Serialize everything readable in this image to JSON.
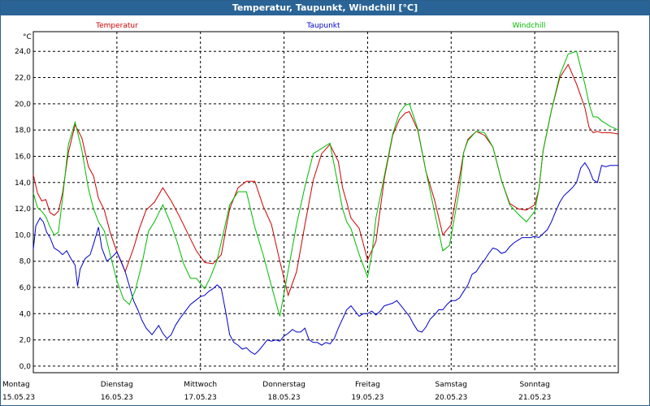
{
  "window": {
    "title": "Temperatur, Taupunkt, Windchill [°C]"
  },
  "chart_data": {
    "type": "line",
    "title": "Temperatur, Taupunkt, Windchill [°C]",
    "ylabel": "°C",
    "ylim": [
      -0.5,
      25.5
    ],
    "yticks": [
      0,
      2,
      4,
      6,
      8,
      10,
      12,
      14,
      16,
      18,
      20,
      22,
      24
    ],
    "ytick_labels": [
      "0,0",
      "2,0",
      "4,0",
      "6,0",
      "8,0",
      "10,0",
      "12,0",
      "14,0",
      "16,0",
      "18,0",
      "20,0",
      "22,0",
      "24,0"
    ],
    "xlim": [
      0,
      7
    ],
    "days": [
      {
        "name": "Montag",
        "date": "15.05.23"
      },
      {
        "name": "Dienstag",
        "date": "16.05.23"
      },
      {
        "name": "Mittwoch",
        "date": "17.05.23"
      },
      {
        "name": "Donnerstag",
        "date": "18.05.23"
      },
      {
        "name": "Freitag",
        "date": "19.05.23"
      },
      {
        "name": "Samstag",
        "date": "20.05.23"
      },
      {
        "name": "Sonntag",
        "date": "21.05.23"
      }
    ],
    "grid": true,
    "series": [
      {
        "name": "Temperatur",
        "color": "#cc0000",
        "x": [
          0,
          0.05,
          0.1,
          0.15,
          0.2,
          0.25,
          0.3,
          0.35,
          0.42,
          0.5,
          0.58,
          0.66,
          0.72,
          0.78,
          0.85,
          0.92,
          1.0,
          1.1,
          1.2,
          1.27,
          1.35,
          1.45,
          1.55,
          1.65,
          1.75,
          1.85,
          1.95,
          2.05,
          2.15,
          2.25,
          2.3,
          2.35,
          2.45,
          2.55,
          2.65,
          2.75,
          2.85,
          2.95,
          3.05,
          3.15,
          3.25,
          3.35,
          3.45,
          3.55,
          3.65,
          3.7,
          3.75,
          3.8,
          3.9,
          4.0,
          4.1,
          4.2,
          4.3,
          4.38,
          4.45,
          4.5,
          4.6,
          4.7,
          4.8,
          4.9,
          5.0,
          5.1,
          5.15,
          5.2,
          5.3,
          5.4,
          5.5,
          5.6,
          5.7,
          5.8,
          5.9,
          6.0,
          6.05,
          6.1,
          6.2,
          6.3,
          6.4,
          6.5,
          6.6,
          6.65,
          6.7,
          6.75,
          6.8,
          6.9,
          7.0
        ],
        "values": [
          14.6,
          13.2,
          12.6,
          12.7,
          11.7,
          11.5,
          11.8,
          13.2,
          16.3,
          18.4,
          17.4,
          15.2,
          14.5,
          12.8,
          11.9,
          10.2,
          8.7,
          7.2,
          9.0,
          10.5,
          11.9,
          12.5,
          13.6,
          12.6,
          11.4,
          10.1,
          8.8,
          7.9,
          7.8,
          8.5,
          10.3,
          12.0,
          13.6,
          14.1,
          14.1,
          12.2,
          10.8,
          8.0,
          5.4,
          7.2,
          10.8,
          14.2,
          16.2,
          16.9,
          15.6,
          13.6,
          12.5,
          11.3,
          10.5,
          8.1,
          9.5,
          14.3,
          17.6,
          18.8,
          19.3,
          19.4,
          18.0,
          14.8,
          12.7,
          10.0,
          10.8,
          14.4,
          16.3,
          17.3,
          17.9,
          17.6,
          16.7,
          14.2,
          12.4,
          12.0,
          11.9,
          12.3,
          13.5,
          16.4,
          19.5,
          22.0,
          23.0,
          21.5,
          19.7,
          18.2,
          17.8,
          17.9,
          17.8,
          17.8,
          17.7
        ],
        "x_note": "x in days from 15.05.23 00:00"
      },
      {
        "name": "Taupunkt",
        "color": "#0000cc",
        "x": [
          0,
          0.03,
          0.08,
          0.12,
          0.16,
          0.2,
          0.25,
          0.3,
          0.35,
          0.4,
          0.45,
          0.5,
          0.53,
          0.56,
          0.62,
          0.68,
          0.72,
          0.78,
          0.82,
          0.88,
          0.94,
          1.0,
          1.05,
          1.1,
          1.15,
          1.2,
          1.25,
          1.3,
          1.35,
          1.42,
          1.5,
          1.55,
          1.6,
          1.65,
          1.7,
          1.75,
          1.82,
          1.88,
          1.94,
          2.0,
          2.05,
          2.1,
          2.15,
          2.2,
          2.25,
          2.3,
          2.35,
          2.4,
          2.45,
          2.5,
          2.55,
          2.6,
          2.65,
          2.7,
          2.75,
          2.8,
          2.85,
          2.9,
          2.95,
          3.0,
          3.05,
          3.1,
          3.15,
          3.2,
          3.25,
          3.3,
          3.35,
          3.4,
          3.45,
          3.5,
          3.55,
          3.6,
          3.65,
          3.7,
          3.75,
          3.8,
          3.85,
          3.9,
          3.95,
          4.0,
          4.05,
          4.1,
          4.15,
          4.2,
          4.25,
          4.3,
          4.35,
          4.4,
          4.45,
          4.5,
          4.55,
          4.6,
          4.65,
          4.7,
          4.75,
          4.8,
          4.85,
          4.9,
          4.95,
          5.0,
          5.05,
          5.1,
          5.15,
          5.2,
          5.25,
          5.3,
          5.35,
          5.4,
          5.45,
          5.5,
          5.55,
          5.6,
          5.65,
          5.7,
          5.75,
          5.8,
          5.85,
          5.9,
          5.95,
          6.0,
          6.05,
          6.1,
          6.15,
          6.2,
          6.25,
          6.3,
          6.35,
          6.4,
          6.45,
          6.5,
          6.55,
          6.6,
          6.65,
          6.7,
          6.75,
          6.8,
          6.85,
          6.9,
          6.95,
          7.0
        ],
        "values": [
          8.9,
          10.7,
          11.3,
          11.0,
          10.2,
          9.8,
          9.0,
          8.8,
          8.5,
          8.8,
          8.2,
          7.7,
          6.1,
          7.4,
          8.2,
          8.5,
          9.3,
          10.6,
          9.0,
          8.0,
          8.3,
          8.7,
          8.0,
          7.2,
          6.1,
          5.0,
          4.3,
          3.5,
          2.9,
          2.4,
          3.1,
          2.5,
          2.1,
          2.4,
          3.1,
          3.6,
          4.2,
          4.7,
          5.0,
          5.3,
          5.4,
          5.7,
          5.9,
          6.2,
          5.9,
          4.2,
          2.4,
          1.8,
          1.6,
          1.3,
          1.4,
          1.1,
          0.9,
          1.2,
          1.6,
          2.0,
          1.9,
          2.0,
          1.9,
          2.3,
          2.5,
          2.8,
          2.6,
          2.6,
          2.9,
          2.0,
          1.8,
          1.8,
          1.6,
          1.8,
          1.7,
          2.1,
          2.9,
          3.6,
          4.3,
          4.6,
          4.2,
          3.8,
          4.0,
          4.0,
          4.2,
          3.9,
          4.2,
          4.6,
          4.7,
          4.8,
          5.0,
          4.6,
          4.2,
          3.8,
          3.2,
          2.7,
          2.6,
          3.0,
          3.6,
          3.9,
          4.3,
          4.3,
          4.7,
          5.0,
          5.0,
          5.2,
          5.7,
          6.2,
          7.0,
          7.2,
          7.7,
          8.1,
          8.6,
          9.0,
          8.9,
          8.6,
          8.7,
          9.1,
          9.4,
          9.6,
          9.8,
          9.8,
          9.8,
          9.9,
          9.8,
          10.1,
          10.4,
          11.0,
          11.8,
          12.5,
          13.0,
          13.3,
          13.6,
          14.0,
          15.1,
          15.5,
          15.0,
          14.2,
          14.0,
          15.3,
          15.2,
          15.3,
          15.3,
          15.3
        ],
        "x_note": "x in days from 15.05.23 00:00"
      },
      {
        "name": "Windchill",
        "color": "#00bb00",
        "x": [
          0,
          0.05,
          0.1,
          0.15,
          0.2,
          0.25,
          0.3,
          0.35,
          0.42,
          0.5,
          0.58,
          0.66,
          0.72,
          0.78,
          0.85,
          0.92,
          1.0,
          1.08,
          1.15,
          1.22,
          1.3,
          1.38,
          1.45,
          1.55,
          1.65,
          1.72,
          1.8,
          1.88,
          1.95,
          2.05,
          2.12,
          2.2,
          2.28,
          2.35,
          2.45,
          2.55,
          2.65,
          2.75,
          2.85,
          2.95,
          3.05,
          3.15,
          3.25,
          3.35,
          3.45,
          3.55,
          3.65,
          3.7,
          3.75,
          3.8,
          3.9,
          4.0,
          4.05,
          4.1,
          4.2,
          4.3,
          4.38,
          4.45,
          4.5,
          4.6,
          4.7,
          4.8,
          4.9,
          4.98,
          5.1,
          5.15,
          5.2,
          5.3,
          5.4,
          5.5,
          5.6,
          5.7,
          5.8,
          5.9,
          6.0,
          6.05,
          6.1,
          6.2,
          6.3,
          6.4,
          6.5,
          6.6,
          6.65,
          6.7,
          6.75,
          6.8,
          6.9,
          7.0
        ],
        "values": [
          13.2,
          12.1,
          11.8,
          11.4,
          10.6,
          10.0,
          10.2,
          12.8,
          16.9,
          18.6,
          16.5,
          13.5,
          12.0,
          11.0,
          10.3,
          8.5,
          6.5,
          5.1,
          4.7,
          5.8,
          7.8,
          10.3,
          11.0,
          12.3,
          10.8,
          9.5,
          7.8,
          6.7,
          6.7,
          5.9,
          6.8,
          8.1,
          10.3,
          12.3,
          13.3,
          13.3,
          10.6,
          8.5,
          6.1,
          3.8,
          7.3,
          10.8,
          13.7,
          16.2,
          16.6,
          17.0,
          13.7,
          12.0,
          11.0,
          10.5,
          8.5,
          6.8,
          8.5,
          11.3,
          14.5,
          17.7,
          19.3,
          19.9,
          20.0,
          18.1,
          14.8,
          11.8,
          8.8,
          9.2,
          13.5,
          16.3,
          17.2,
          17.9,
          17.8,
          16.7,
          14.2,
          12.3,
          11.6,
          11.0,
          11.8,
          13.5,
          16.4,
          19.5,
          22.2,
          23.8,
          24.0,
          21.5,
          20.0,
          19.0,
          19.0,
          18.7,
          18.3,
          18.0
        ],
        "x_note": "x in days from 15.05.23 00:00"
      }
    ]
  }
}
